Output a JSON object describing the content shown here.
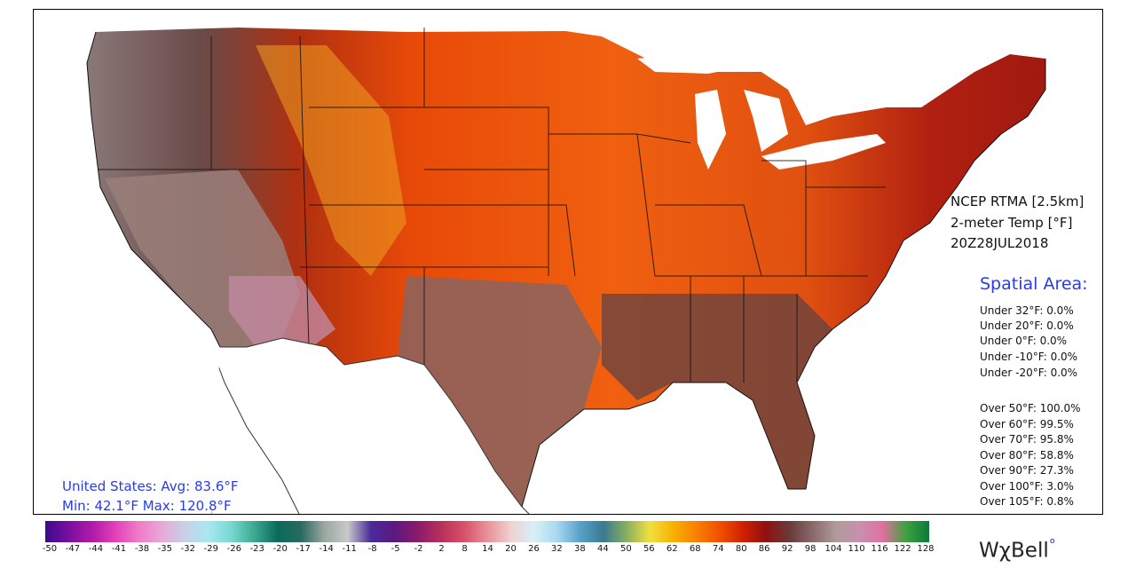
{
  "header": {
    "model": "NCEP RTMA [2.5km]",
    "variable": "2-meter Temp [°F]",
    "valid_time": "20Z28JUL2018"
  },
  "spatial_area": {
    "title": "Spatial Area:",
    "under": [
      "Under 32°F: 0.0%",
      "Under 20°F: 0.0%",
      "Under 0°F: 0.0%",
      "Under -10°F: 0.0%",
      "Under -20°F: 0.0%"
    ],
    "over": [
      "Over 50°F: 100.0%",
      "Over 60°F: 99.5%",
      "Over 70°F: 95.8%",
      "Over 80°F: 58.8%",
      "Over 90°F: 27.3%",
      "Over 100°F: 3.0%",
      "Over 105°F: 0.8%"
    ]
  },
  "summary": {
    "avg_line": "United States: Avg:  83.6°F",
    "minmax_line": "Min:  42.1°F Max: 120.8°F"
  },
  "colorbar": {
    "ticks": [
      "-50",
      "-47",
      "-44",
      "-41",
      "-38",
      "-35",
      "-32",
      "-29",
      "-26",
      "-23",
      "-20",
      "-17",
      "-14",
      "-11",
      "-8",
      "-5",
      "-2",
      "2",
      "8",
      "14",
      "20",
      "26",
      "32",
      "38",
      "44",
      "50",
      "56",
      "62",
      "68",
      "74",
      "80",
      "86",
      "92",
      "98",
      "104",
      "110",
      "116",
      "122",
      "128"
    ],
    "stops": [
      "#3a0a8a",
      "#7a0ea0",
      "#b01aa8",
      "#e040b8",
      "#f07ac8",
      "#e8a8d8",
      "#c8d0e8",
      "#a8e8f0",
      "#78d8d0",
      "#3aa890",
      "#0a6a58",
      "#2a6a60",
      "#9aa8a0",
      "#c8c8c8",
      "#4a2a9a",
      "#5a1a80",
      "#8a1a6a",
      "#b8305a",
      "#d85068",
      "#e89098",
      "#f0d0d0",
      "#d8f0f8",
      "#a8d8f0",
      "#58a0c8",
      "#3a7a90",
      "#8ab060",
      "#f0e040",
      "#f8b000",
      "#f88000",
      "#f05000",
      "#d02000",
      "#901010",
      "#6a3a3a",
      "#8a6a6a",
      "#b09a9a",
      "#c890b0",
      "#e070a0",
      "#40a040",
      "#0a7a3a"
    ]
  },
  "logo": {
    "text": "WχBell",
    "mark": "°"
  },
  "colors": {
    "accent_blue": "#2b3be8",
    "land_outside": "#ffffff",
    "water": "#ffffff"
  }
}
